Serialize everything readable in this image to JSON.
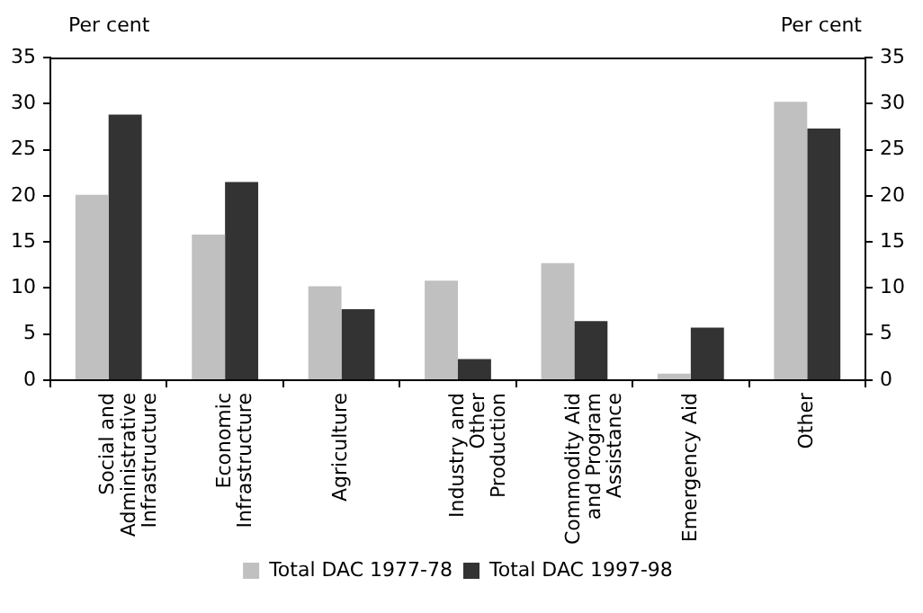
{
  "chart_data": {
    "type": "bar",
    "ylabel": "Per cent",
    "y2label": "Per cent",
    "categories": [
      "Social and Administrative Infrastructure",
      "Economic Infrastructure",
      "Agriculture",
      "Industry and Other Production",
      "Commodity Aid and Program Assistance",
      "Emergency Aid",
      "Other"
    ],
    "series": [
      {
        "name": "Total DAC 1977-78",
        "color": "#c0c0c0",
        "values": [
          20.1,
          15.8,
          10.2,
          10.8,
          12.7,
          0.7,
          30.2
        ]
      },
      {
        "name": "Total DAC 1997-98",
        "color": "#333333",
        "values": [
          28.8,
          21.5,
          7.7,
          2.3,
          6.4,
          5.7,
          27.3
        ]
      }
    ],
    "ylim": [
      0,
      35
    ],
    "yticks": [
      0,
      5,
      10,
      15,
      20,
      25,
      30,
      35
    ],
    "y2lim": [
      0,
      35
    ],
    "y2ticks": [
      0,
      5,
      10,
      15,
      20,
      25,
      30,
      35
    ],
    "grid": false,
    "legend": "bottom"
  }
}
